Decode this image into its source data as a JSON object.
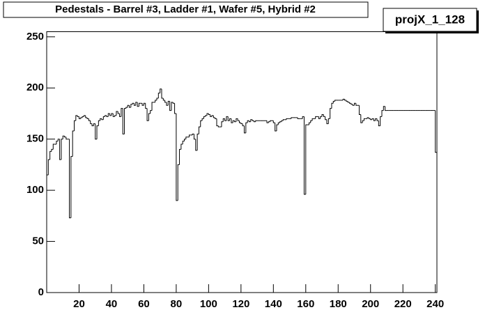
{
  "chart_data": {
    "type": "histogram",
    "title": "Pedestals - Barrel #3, Ladder #1, Wafer #5, Hybrid #2",
    "stats_title": "projX_1_128",
    "color": "#000000",
    "xlim": [
      0,
      241
    ],
    "ylim": [
      0,
      255
    ],
    "xticks": [
      20,
      40,
      60,
      80,
      100,
      120,
      140,
      160,
      180,
      200,
      220,
      240
    ],
    "yticks": [
      0,
      50,
      100,
      150,
      200,
      250
    ],
    "bins": [
      0,
      1,
      2,
      3,
      4,
      5,
      6,
      7,
      8,
      9,
      10,
      11,
      12,
      13,
      14,
      15,
      16,
      17,
      18,
      19,
      20,
      21,
      22,
      23,
      24,
      25,
      26,
      27,
      28,
      29,
      30,
      31,
      32,
      33,
      34,
      35,
      36,
      37,
      38,
      39,
      40,
      41,
      42,
      43,
      44,
      45,
      46,
      47,
      48,
      49,
      50,
      51,
      52,
      53,
      54,
      55,
      56,
      57,
      58,
      59,
      60,
      61,
      62,
      63,
      64,
      65,
      66,
      67,
      68,
      69,
      70,
      71,
      72,
      73,
      74,
      75,
      76,
      77,
      78,
      79,
      80,
      81,
      82,
      83,
      84,
      85,
      86,
      87,
      88,
      89,
      90,
      91,
      92,
      93,
      94,
      95,
      96,
      97,
      98,
      99,
      100,
      101,
      102,
      103,
      104,
      105,
      106,
      107,
      108,
      109,
      110,
      111,
      112,
      113,
      114,
      115,
      116,
      117,
      118,
      119,
      120,
      121,
      122,
      123,
      124,
      125,
      126,
      127,
      128,
      129,
      130,
      131,
      132,
      133,
      134,
      135,
      136,
      137,
      138,
      139,
      140,
      141,
      142,
      143,
      144,
      145,
      146,
      147,
      148,
      149,
      150,
      151,
      152,
      153,
      154,
      155,
      156,
      157,
      158,
      159,
      160,
      161,
      162,
      163,
      164,
      165,
      166,
      167,
      168,
      169,
      170,
      171,
      172,
      173,
      174,
      175,
      176,
      177,
      178,
      179,
      180,
      181,
      182,
      183,
      184,
      185,
      186,
      187,
      188,
      189,
      190,
      191,
      192,
      193,
      194,
      195,
      196,
      197,
      198,
      199,
      200,
      201,
      202,
      203,
      204,
      205,
      206,
      207,
      208,
      209,
      210,
      211,
      212,
      213,
      214,
      215,
      216,
      217,
      218,
      219,
      220,
      221,
      222,
      223,
      224,
      225,
      226,
      227,
      228,
      229,
      230,
      231,
      232,
      233,
      234,
      235,
      236,
      237,
      238,
      239,
      240,
      241
    ],
    "values": [
      115,
      130,
      138,
      140,
      145,
      145,
      148,
      150,
      130,
      150,
      153,
      152,
      150,
      150,
      73,
      133,
      158,
      168,
      173,
      172,
      170,
      171,
      172,
      173,
      171,
      170,
      168,
      165,
      163,
      165,
      150,
      163,
      168,
      170,
      169,
      172,
      173,
      172,
      175,
      173,
      175,
      172,
      173,
      177,
      175,
      172,
      180,
      155,
      180,
      181,
      183,
      181,
      184,
      185,
      183,
      186,
      182,
      185,
      185,
      183,
      185,
      180,
      168,
      175,
      178,
      186,
      186,
      188,
      190,
      195,
      199,
      190,
      188,
      186,
      183,
      187,
      178,
      186,
      185,
      175,
      90,
      125,
      140,
      145,
      148,
      150,
      152,
      152,
      154,
      154,
      155,
      150,
      139,
      155,
      162,
      168,
      170,
      172,
      173,
      175,
      174,
      172,
      173,
      171,
      170,
      163,
      162,
      162,
      167,
      170,
      168,
      172,
      168,
      170,
      166,
      168,
      167,
      170,
      168,
      166,
      165,
      163,
      156,
      166,
      168,
      167,
      169,
      168,
      167,
      168,
      168,
      168,
      168,
      168,
      168,
      168,
      166,
      167,
      168,
      168,
      166,
      158,
      164,
      166,
      167,
      168,
      169,
      169,
      170,
      170,
      170,
      171,
      171,
      171,
      171,
      170,
      170,
      170,
      172,
      96,
      164,
      164,
      166,
      168,
      170,
      170,
      172,
      172,
      170,
      172,
      174,
      172,
      169,
      165,
      170,
      180,
      185,
      187,
      188,
      188,
      188,
      188,
      188,
      189,
      188,
      187,
      186,
      185,
      184,
      183,
      185,
      183,
      183,
      174,
      166,
      168,
      170,
      170,
      171,
      170,
      169,
      170,
      168,
      170,
      168,
      163,
      172,
      178,
      182,
      178,
      178,
      178,
      178,
      178,
      178,
      178,
      178,
      178,
      178,
      178,
      178,
      178,
      178,
      178,
      178,
      178,
      178,
      178,
      178,
      178,
      178,
      178,
      178,
      178,
      178,
      178,
      178,
      178,
      178,
      178,
      137
    ]
  }
}
